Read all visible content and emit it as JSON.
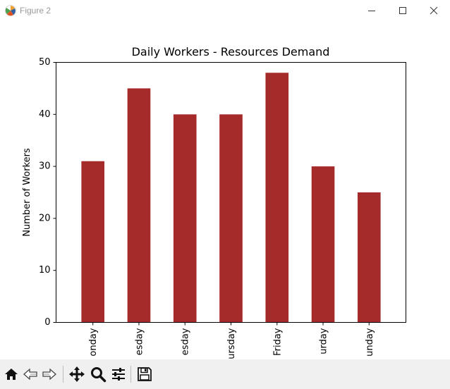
{
  "window": {
    "title": "Figure 2"
  },
  "toolbar": {
    "items": [
      {
        "name": "home-icon"
      },
      {
        "name": "back-arrow-icon"
      },
      {
        "name": "forward-arrow-icon"
      },
      {
        "name": "pan-move-icon"
      },
      {
        "name": "zoom-magnifier-icon"
      },
      {
        "name": "configure-subplots-icon"
      },
      {
        "name": "save-figure-icon"
      }
    ]
  },
  "chart_data": {
    "type": "bar",
    "title": "Daily Workers - Resources Demand",
    "xlabel": "",
    "ylabel": "Number of Workers",
    "categories": [
      "onday",
      "esday",
      "esday",
      "ursday",
      "Friday",
      "urday",
      "unday"
    ],
    "values": [
      31,
      45,
      40,
      40,
      48,
      30,
      25
    ],
    "ylim": [
      0,
      50
    ],
    "yticks": [
      0,
      10,
      20,
      30,
      40,
      50
    ],
    "bar_color": "#a52a2a",
    "grid": false,
    "legend": "none",
    "tick_label_rotation": "vertical"
  }
}
